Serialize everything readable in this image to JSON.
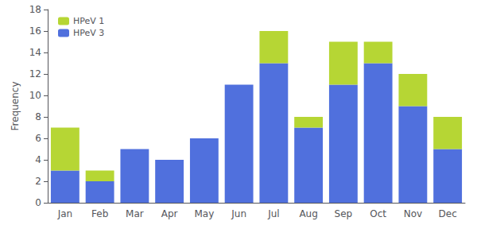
{
  "chart_data": {
    "type": "bar",
    "stacked": true,
    "categories": [
      "Jan",
      "Feb",
      "Mar",
      "Apr",
      "May",
      "Jun",
      "Jul",
      "Aug",
      "Sep",
      "Oct",
      "Nov",
      "Dec"
    ],
    "series": [
      {
        "name": "HPeV 3",
        "values": [
          3,
          2,
          5,
          4,
          6,
          11,
          13,
          7,
          11,
          13,
          9,
          5
        ]
      },
      {
        "name": "HPeV 1",
        "values": [
          4,
          1,
          0,
          0,
          0,
          0,
          3,
          1,
          4,
          2,
          3,
          3
        ]
      }
    ],
    "ylabel": "Frequency",
    "ylim": [
      0,
      18
    ],
    "yticks": [
      0,
      2,
      4,
      6,
      8,
      10,
      12,
      14,
      16,
      18
    ],
    "grid": false,
    "legend": "upper left"
  }
}
